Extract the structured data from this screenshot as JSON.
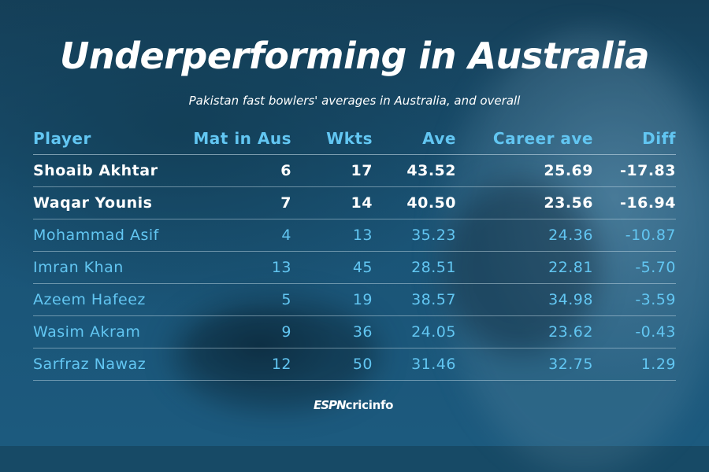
{
  "chart_data": {
    "type": "table",
    "title": "Underperforming in Australia",
    "subtitle": "Pakistan fast bowlers' averages in Australia, and overall",
    "columns": [
      "Player",
      "Mat in Aus",
      "Wkts",
      "Ave",
      "Career ave",
      "Diff"
    ],
    "rows": [
      {
        "player": "Shoaib Akhtar",
        "mat": "6",
        "wkts": "17",
        "ave": "43.52",
        "career_ave": "25.69",
        "diff": "-17.83",
        "highlight": true
      },
      {
        "player": "Waqar Younis",
        "mat": "7",
        "wkts": "14",
        "ave": "40.50",
        "career_ave": "23.56",
        "diff": "-16.94",
        "highlight": true
      },
      {
        "player": "Mohammad Asif",
        "mat": "4",
        "wkts": "13",
        "ave": "35.23",
        "career_ave": "24.36",
        "diff": "-10.87",
        "highlight": false
      },
      {
        "player": "Imran Khan",
        "mat": "13",
        "wkts": "45",
        "ave": "28.51",
        "career_ave": "22.81",
        "diff": "-5.70",
        "highlight": false
      },
      {
        "player": "Azeem Hafeez",
        "mat": "5",
        "wkts": "19",
        "ave": "38.57",
        "career_ave": "34.98",
        "diff": "-3.59",
        "highlight": false
      },
      {
        "player": "Wasim Akram",
        "mat": "9",
        "wkts": "36",
        "ave": "24.05",
        "career_ave": "23.62",
        "diff": "-0.43",
        "highlight": false
      },
      {
        "player": "Sarfraz Nawaz",
        "mat": "12",
        "wkts": "50",
        "ave": "31.46",
        "career_ave": "32.75",
        "diff": "1.29",
        "highlight": false
      }
    ]
  },
  "branding": {
    "logo_espn": "ESPN",
    "logo_cricinfo": "cricinfo"
  },
  "colors": {
    "background": "#174a66",
    "header_text": "#62c6f2",
    "highlight_text": "#ffffff",
    "row_text": "#62c6f2"
  }
}
